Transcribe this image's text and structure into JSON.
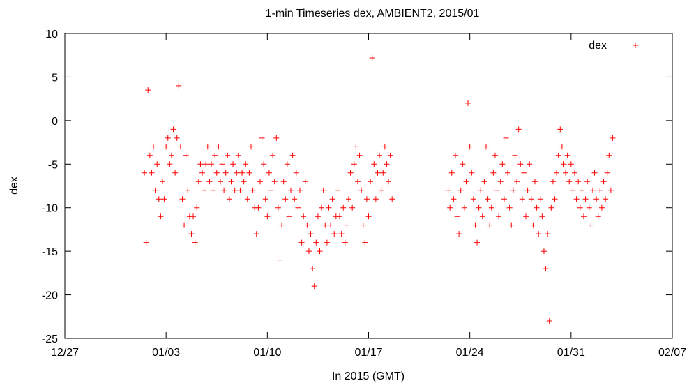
{
  "chart_data": {
    "type": "scatter",
    "title": "1-min Timeseries dex, AMBIENT2, 2015/01",
    "xlabel": "In 2015 (GMT)",
    "ylabel": "dex",
    "x_type": "date",
    "xlim": [
      "2014-12-27",
      "2015-02-07"
    ],
    "ylim": [
      -25,
      10
    ],
    "x_ticks": [
      {
        "value": "2014-12-27",
        "label": "12/27"
      },
      {
        "value": "2015-01-03",
        "label": "01/03"
      },
      {
        "value": "2015-01-10",
        "label": "01/10"
      },
      {
        "value": "2015-01-17",
        "label": "01/17"
      },
      {
        "value": "2015-01-24",
        "label": "01/24"
      },
      {
        "value": "2015-01-31",
        "label": "01/31"
      },
      {
        "value": "2015-02-07",
        "label": "02/07"
      }
    ],
    "y_ticks": [
      10,
      5,
      0,
      -5,
      -10,
      -15,
      -20,
      -25
    ],
    "grid": false,
    "legend": {
      "position": "top-right",
      "entries": [
        "dex"
      ]
    },
    "marker": "+",
    "series": [
      {
        "name": "dex",
        "color": "#ff0000",
        "points": [
          [
            "2015-01-01T12:00",
            -6
          ],
          [
            "2015-01-01T15:00",
            -14
          ],
          [
            "2015-01-01T18:00",
            3.5
          ],
          [
            "2015-01-01T21:00",
            -4
          ],
          [
            "2015-01-02T00:00",
            -6
          ],
          [
            "2015-01-02T03:00",
            -3
          ],
          [
            "2015-01-02T06:00",
            -8
          ],
          [
            "2015-01-02T09:00",
            -5
          ],
          [
            "2015-01-02T12:00",
            -9
          ],
          [
            "2015-01-02T15:00",
            -11
          ],
          [
            "2015-01-02T18:00",
            -7
          ],
          [
            "2015-01-02T21:00",
            -9
          ],
          [
            "2015-01-03T00:00",
            -3
          ],
          [
            "2015-01-03T03:00",
            -2
          ],
          [
            "2015-01-03T06:00",
            -5
          ],
          [
            "2015-01-03T09:00",
            -4
          ],
          [
            "2015-01-03T12:00",
            -1
          ],
          [
            "2015-01-03T15:00",
            -6
          ],
          [
            "2015-01-03T18:00",
            -2
          ],
          [
            "2015-01-03T21:00",
            4
          ],
          [
            "2015-01-04T00:00",
            -3
          ],
          [
            "2015-01-04T03:00",
            -9
          ],
          [
            "2015-01-04T06:00",
            -12
          ],
          [
            "2015-01-04T09:00",
            -4
          ],
          [
            "2015-01-04T12:00",
            -8
          ],
          [
            "2015-01-04T15:00",
            -11
          ],
          [
            "2015-01-04T18:00",
            -13
          ],
          [
            "2015-01-04T21:00",
            -11
          ],
          [
            "2015-01-05T00:00",
            -14
          ],
          [
            "2015-01-05T03:00",
            -10
          ],
          [
            "2015-01-05T06:00",
            -7
          ],
          [
            "2015-01-05T09:00",
            -5
          ],
          [
            "2015-01-05T12:00",
            -6
          ],
          [
            "2015-01-05T15:00",
            -8
          ],
          [
            "2015-01-05T18:00",
            -5
          ],
          [
            "2015-01-05T21:00",
            -3
          ],
          [
            "2015-01-06T00:00",
            -7
          ],
          [
            "2015-01-06T03:00",
            -5
          ],
          [
            "2015-01-06T06:00",
            -8
          ],
          [
            "2015-01-06T09:00",
            -4
          ],
          [
            "2015-01-06T12:00",
            -6
          ],
          [
            "2015-01-06T15:00",
            -3
          ],
          [
            "2015-01-06T18:00",
            -7
          ],
          [
            "2015-01-06T21:00",
            -5
          ],
          [
            "2015-01-07T00:00",
            -8
          ],
          [
            "2015-01-07T03:00",
            -6
          ],
          [
            "2015-01-07T06:00",
            -4
          ],
          [
            "2015-01-07T09:00",
            -9
          ],
          [
            "2015-01-07T12:00",
            -7
          ],
          [
            "2015-01-07T15:00",
            -5
          ],
          [
            "2015-01-07T18:00",
            -8
          ],
          [
            "2015-01-07T21:00",
            -6
          ],
          [
            "2015-01-08T00:00",
            -4
          ],
          [
            "2015-01-08T03:00",
            -8
          ],
          [
            "2015-01-08T06:00",
            -6
          ],
          [
            "2015-01-08T09:00",
            -7
          ],
          [
            "2015-01-08T12:00",
            -5
          ],
          [
            "2015-01-08T15:00",
            -9
          ],
          [
            "2015-01-08T18:00",
            -6
          ],
          [
            "2015-01-08T21:00",
            -3
          ],
          [
            "2015-01-09T00:00",
            -8
          ],
          [
            "2015-01-09T03:00",
            -10
          ],
          [
            "2015-01-09T06:00",
            -13
          ],
          [
            "2015-01-09T09:00",
            -10
          ],
          [
            "2015-01-09T12:00",
            -7
          ],
          [
            "2015-01-09T15:00",
            -2
          ],
          [
            "2015-01-09T18:00",
            -5
          ],
          [
            "2015-01-09T21:00",
            -9
          ],
          [
            "2015-01-10T00:00",
            -11
          ],
          [
            "2015-01-10T03:00",
            -6
          ],
          [
            "2015-01-10T06:00",
            -8
          ],
          [
            "2015-01-10T09:00",
            -4
          ],
          [
            "2015-01-10T12:00",
            -7
          ],
          [
            "2015-01-10T15:00",
            -2
          ],
          [
            "2015-01-10T18:00",
            -10
          ],
          [
            "2015-01-10T21:00",
            -16
          ],
          [
            "2015-01-11T00:00",
            -12
          ],
          [
            "2015-01-11T03:00",
            -7
          ],
          [
            "2015-01-11T06:00",
            -9
          ],
          [
            "2015-01-11T09:00",
            -5
          ],
          [
            "2015-01-11T12:00",
            -11
          ],
          [
            "2015-01-11T15:00",
            -8
          ],
          [
            "2015-01-11T18:00",
            -4
          ],
          [
            "2015-01-11T21:00",
            -9
          ],
          [
            "2015-01-12T00:00",
            -6
          ],
          [
            "2015-01-12T03:00",
            -10
          ],
          [
            "2015-01-12T06:00",
            -8
          ],
          [
            "2015-01-12T09:00",
            -14
          ],
          [
            "2015-01-12T12:00",
            -11
          ],
          [
            "2015-01-12T15:00",
            -7
          ],
          [
            "2015-01-12T18:00",
            -12
          ],
          [
            "2015-01-12T21:00",
            -15
          ],
          [
            "2015-01-13T00:00",
            -13
          ],
          [
            "2015-01-13T03:00",
            -17
          ],
          [
            "2015-01-13T06:00",
            -19
          ],
          [
            "2015-01-13T09:00",
            -14
          ],
          [
            "2015-01-13T12:00",
            -11
          ],
          [
            "2015-01-13T15:00",
            -15
          ],
          [
            "2015-01-13T18:00",
            -10
          ],
          [
            "2015-01-13T21:00",
            -8
          ],
          [
            "2015-01-14T00:00",
            -12
          ],
          [
            "2015-01-14T03:00",
            -14
          ],
          [
            "2015-01-14T06:00",
            -10
          ],
          [
            "2015-01-14T09:00",
            -12
          ],
          [
            "2015-01-14T12:00",
            -9
          ],
          [
            "2015-01-14T15:00",
            -13
          ],
          [
            "2015-01-14T18:00",
            -11
          ],
          [
            "2015-01-14T21:00",
            -8
          ],
          [
            "2015-01-15T00:00",
            -11
          ],
          [
            "2015-01-15T03:00",
            -13
          ],
          [
            "2015-01-15T06:00",
            -10
          ],
          [
            "2015-01-15T09:00",
            -14
          ],
          [
            "2015-01-15T12:00",
            -12
          ],
          [
            "2015-01-15T15:00",
            -9
          ],
          [
            "2015-01-15T18:00",
            -6
          ],
          [
            "2015-01-15T21:00",
            -10
          ],
          [
            "2015-01-16T00:00",
            -5
          ],
          [
            "2015-01-16T03:00",
            -3
          ],
          [
            "2015-01-16T06:00",
            -7
          ],
          [
            "2015-01-16T09:00",
            -4
          ],
          [
            "2015-01-16T12:00",
            -8
          ],
          [
            "2015-01-16T15:00",
            -12
          ],
          [
            "2015-01-16T18:00",
            -14
          ],
          [
            "2015-01-16T21:00",
            -9
          ],
          [
            "2015-01-17T00:00",
            -11
          ],
          [
            "2015-01-17T03:00",
            -7
          ],
          [
            "2015-01-17T06:00",
            7.2
          ],
          [
            "2015-01-17T09:00",
            -5
          ],
          [
            "2015-01-17T12:00",
            -9
          ],
          [
            "2015-01-17T15:00",
            -6
          ],
          [
            "2015-01-17T18:00",
            -4
          ],
          [
            "2015-01-17T21:00",
            -8
          ],
          [
            "2015-01-18T00:00",
            -6
          ],
          [
            "2015-01-18T03:00",
            -3
          ],
          [
            "2015-01-18T06:00",
            -5
          ],
          [
            "2015-01-18T09:00",
            -7
          ],
          [
            "2015-01-18T12:00",
            -4
          ],
          [
            "2015-01-18T15:00",
            -9
          ],
          [
            "2015-01-22T12:00",
            -8
          ],
          [
            "2015-01-22T15:00",
            -10
          ],
          [
            "2015-01-22T18:00",
            -6
          ],
          [
            "2015-01-22T21:00",
            -9
          ],
          [
            "2015-01-23T00:00",
            -4
          ],
          [
            "2015-01-23T03:00",
            -11
          ],
          [
            "2015-01-23T06:00",
            -13
          ],
          [
            "2015-01-23T09:00",
            -8
          ],
          [
            "2015-01-23T12:00",
            -5
          ],
          [
            "2015-01-23T15:00",
            -10
          ],
          [
            "2015-01-23T18:00",
            -7
          ],
          [
            "2015-01-23T21:00",
            2
          ],
          [
            "2015-01-24T00:00",
            -3
          ],
          [
            "2015-01-24T03:00",
            -6
          ],
          [
            "2015-01-24T06:00",
            -9
          ],
          [
            "2015-01-24T09:00",
            -12
          ],
          [
            "2015-01-24T12:00",
            -14
          ],
          [
            "2015-01-24T15:00",
            -10
          ],
          [
            "2015-01-24T18:00",
            -8
          ],
          [
            "2015-01-24T21:00",
            -11
          ],
          [
            "2015-01-25T00:00",
            -7
          ],
          [
            "2015-01-25T03:00",
            -3
          ],
          [
            "2015-01-25T06:00",
            -9
          ],
          [
            "2015-01-25T09:00",
            -12
          ],
          [
            "2015-01-25T12:00",
            -10
          ],
          [
            "2015-01-25T15:00",
            -6
          ],
          [
            "2015-01-25T18:00",
            -4
          ],
          [
            "2015-01-25T21:00",
            -8
          ],
          [
            "2015-01-26T00:00",
            -11
          ],
          [
            "2015-01-26T03:00",
            -7
          ],
          [
            "2015-01-26T06:00",
            -5
          ],
          [
            "2015-01-26T09:00",
            -9
          ],
          [
            "2015-01-26T12:00",
            -2
          ],
          [
            "2015-01-26T15:00",
            -6
          ],
          [
            "2015-01-26T18:00",
            -10
          ],
          [
            "2015-01-26T21:00",
            -12
          ],
          [
            "2015-01-27T00:00",
            -8
          ],
          [
            "2015-01-27T03:00",
            -4
          ],
          [
            "2015-01-27T06:00",
            -7
          ],
          [
            "2015-01-27T09:00",
            -1
          ],
          [
            "2015-01-27T12:00",
            -5
          ],
          [
            "2015-01-27T15:00",
            -9
          ],
          [
            "2015-01-27T18:00",
            -6
          ],
          [
            "2015-01-27T21:00",
            -11
          ],
          [
            "2015-01-28T00:00",
            -8
          ],
          [
            "2015-01-28T03:00",
            -5
          ],
          [
            "2015-01-28T06:00",
            -9
          ],
          [
            "2015-01-28T09:00",
            -12
          ],
          [
            "2015-01-28T12:00",
            -7
          ],
          [
            "2015-01-28T15:00",
            -10
          ],
          [
            "2015-01-28T18:00",
            -13
          ],
          [
            "2015-01-28T21:00",
            -9
          ],
          [
            "2015-01-29T00:00",
            -11
          ],
          [
            "2015-01-29T03:00",
            -15
          ],
          [
            "2015-01-29T06:00",
            -17
          ],
          [
            "2015-01-29T09:00",
            -13
          ],
          [
            "2015-01-29T12:00",
            -23
          ],
          [
            "2015-01-29T15:00",
            -10
          ],
          [
            "2015-01-29T18:00",
            -7
          ],
          [
            "2015-01-29T21:00",
            -9
          ],
          [
            "2015-01-30T00:00",
            -6
          ],
          [
            "2015-01-30T03:00",
            -4
          ],
          [
            "2015-01-30T06:00",
            -1
          ],
          [
            "2015-01-30T09:00",
            -3
          ],
          [
            "2015-01-30T12:00",
            -5
          ],
          [
            "2015-01-30T15:00",
            -6
          ],
          [
            "2015-01-30T18:00",
            -4
          ],
          [
            "2015-01-30T21:00",
            -7
          ],
          [
            "2015-01-31T00:00",
            -5
          ],
          [
            "2015-01-31T03:00",
            -8
          ],
          [
            "2015-01-31T06:00",
            -6
          ],
          [
            "2015-01-31T09:00",
            -9
          ],
          [
            "2015-01-31T12:00",
            -7
          ],
          [
            "2015-01-31T15:00",
            -10
          ],
          [
            "2015-01-31T18:00",
            -8
          ],
          [
            "2015-01-31T21:00",
            -11
          ],
          [
            "2015-02-01T00:00",
            -9
          ],
          [
            "2015-02-01T03:00",
            -7
          ],
          [
            "2015-02-01T06:00",
            -10
          ],
          [
            "2015-02-01T09:00",
            -12
          ],
          [
            "2015-02-01T12:00",
            -8
          ],
          [
            "2015-02-01T15:00",
            -6
          ],
          [
            "2015-02-01T18:00",
            -9
          ],
          [
            "2015-02-01T21:00",
            -11
          ],
          [
            "2015-02-02T00:00",
            -8
          ],
          [
            "2015-02-02T03:00",
            -10
          ],
          [
            "2015-02-02T06:00",
            -7
          ],
          [
            "2015-02-02T09:00",
            -9
          ],
          [
            "2015-02-02T12:00",
            -6
          ],
          [
            "2015-02-02T15:00",
            -4
          ],
          [
            "2015-02-02T18:00",
            -8
          ],
          [
            "2015-02-02T21:00",
            -2
          ]
        ]
      }
    ]
  }
}
